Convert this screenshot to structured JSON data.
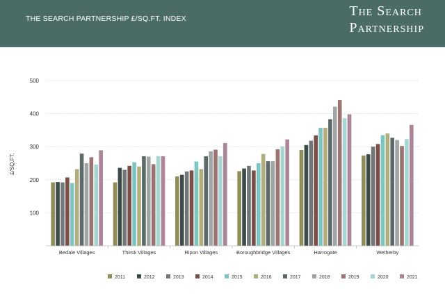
{
  "header": {
    "title": "THE SEARCH PARTNERSHIP £/SQ.FT. INDEX",
    "brand_line1": "The Search",
    "brand_line2": "Partnership",
    "background": "#4b6b66"
  },
  "chart_data": {
    "type": "bar",
    "ylabel": "£/SQ.FT.",
    "xlabel": "",
    "ylim": [
      0,
      500
    ],
    "yticks": [
      100,
      200,
      300,
      400,
      500
    ],
    "grid": true,
    "legend_position": "bottom",
    "categories": [
      "Bedale Villages",
      "Thirsk Villages",
      "Ripon Villages",
      "Boroughbridge Villages",
      "Harrogate",
      "Wetherby"
    ],
    "series": [
      {
        "name": "2011",
        "color": "#8f8e5a",
        "values": [
          192,
          192,
          210,
          226,
          290,
          273
        ]
      },
      {
        "name": "2012",
        "color": "#3d4b4a",
        "values": [
          193,
          236,
          215,
          234,
          305,
          277
        ]
      },
      {
        "name": "2013",
        "color": "#6f7777",
        "values": [
          192,
          230,
          225,
          242,
          318,
          300
        ]
      },
      {
        "name": "2014",
        "color": "#7a4f48",
        "values": [
          207,
          242,
          228,
          228,
          334,
          308
        ]
      },
      {
        "name": "2015",
        "color": "#7cc5c0",
        "values": [
          190,
          253,
          255,
          250,
          357,
          335
        ]
      },
      {
        "name": "2016",
        "color": "#b1ad7d",
        "values": [
          232,
          240,
          232,
          278,
          357,
          340
        ]
      },
      {
        "name": "2017",
        "color": "#5e6a69",
        "values": [
          279,
          271,
          271,
          256,
          383,
          327
        ]
      },
      {
        "name": "2018",
        "color": "#a0a6a6",
        "values": [
          250,
          270,
          286,
          256,
          421,
          320
        ]
      },
      {
        "name": "2019",
        "color": "#9a7470",
        "values": [
          268,
          247,
          291,
          292,
          441,
          302
        ]
      },
      {
        "name": "2020",
        "color": "#a6d6d2",
        "values": [
          246,
          271,
          271,
          301,
          386,
          323
        ]
      },
      {
        "name": "2021",
        "color": "#ad8599",
        "values": [
          289,
          271,
          311,
          322,
          398,
          366
        ]
      }
    ]
  }
}
